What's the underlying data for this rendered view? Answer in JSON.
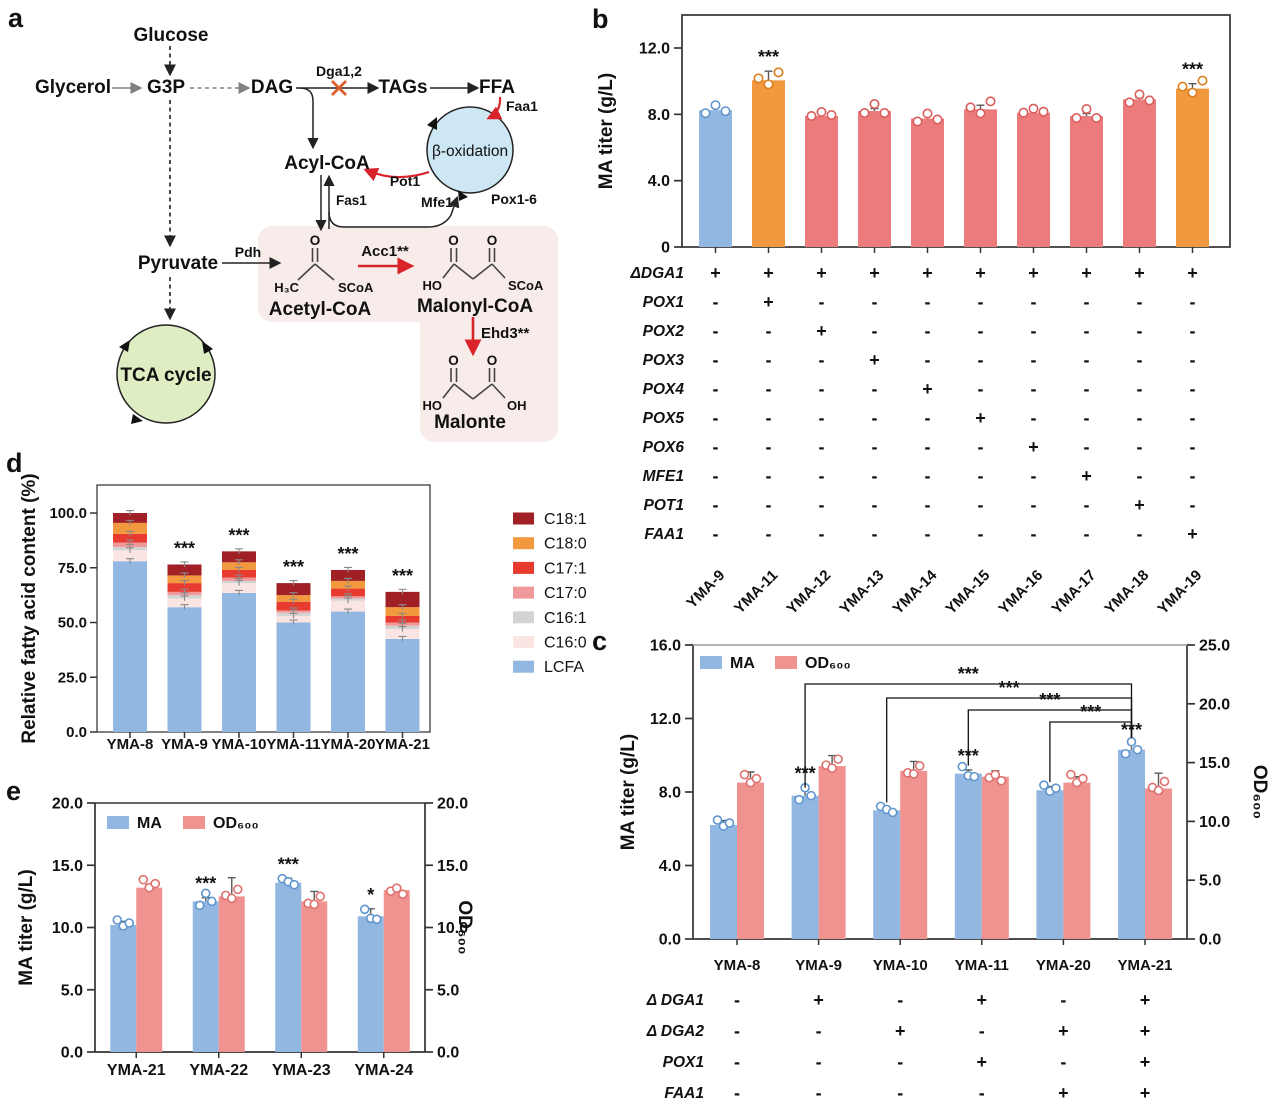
{
  "figure": {
    "panel_labels": {
      "a": "a",
      "b": "b",
      "c": "c",
      "d": "d",
      "e": "e"
    }
  },
  "colors": {
    "blue": "#92B7E1",
    "blue_stroke": "#5F95CE",
    "orange": "#F2983E",
    "orange_stroke": "#DD7E1E",
    "red": "#EC7C7C",
    "red_stroke": "#DB5C5C",
    "pink": "#F09290",
    "pink_stroke": "#DE706E",
    "dark_red": "#A12026",
    "bright_red": "#E73B2F",
    "salmon": "#F0999B",
    "light_gray": "#D3D3D3",
    "pale_pink": "#FBE5E3",
    "enzyme_red": "#D8232A",
    "dga_blue": "#2B6CB8",
    "cross_orange": "#DD5F2B",
    "beta_ox_fill": "#CDE7F4",
    "tca_fill": "#DFEDC2",
    "pathway_box": "#F7ECEA",
    "axis": "#333333",
    "error_bar": "#5A5A5A"
  },
  "panel_a": {
    "glucose": "Glucose",
    "glycerol": "Glycerol",
    "g3p": "G3P",
    "dag": "DAG",
    "dga12": "Dga1,2",
    "tags": "TAGs",
    "ffa": "FFA",
    "faa1": "Faa1",
    "beta_oxidation": "β-oxidation",
    "pot1": "Pot1",
    "mfe1": "Mfe1",
    "pox16": "Pox1-6",
    "acyl_coa": "Acyl-CoA",
    "fas1": "Fas1",
    "pyruvate": "Pyruvate",
    "pdh": "Pdh",
    "acc1": "Acc1**",
    "acetyl_coa": "Acetyl-CoA",
    "malonyl_coa": "Malonyl-CoA",
    "ehd3": "Ehd3**",
    "malonate": "Malonte",
    "tca": "TCA cycle",
    "atoms": {
      "o": "O",
      "ho": "HO",
      "oh": "OH",
      "scoa": "SCoA",
      "h3c": "H₃C"
    }
  },
  "chart_data": [
    {
      "id": "b",
      "type": "bar",
      "ylabel": "MA titer (g/L)",
      "categories": [
        "YMA-9",
        "YMA-11",
        "YMA-12",
        "YMA-13",
        "YMA-14",
        "YMA-15",
        "YMA-16",
        "YMA-17",
        "YMA-18",
        "YMA-19"
      ],
      "values": [
        8.25,
        10.05,
        7.9,
        8.2,
        7.75,
        8.3,
        8.1,
        7.9,
        8.9,
        9.55
      ],
      "errors": [
        0.15,
        0.55,
        0.2,
        0.15,
        0.2,
        0.25,
        0.2,
        0.15,
        0.1,
        0.3
      ],
      "bar_colors": [
        "blue",
        "orange",
        "red",
        "red",
        "red",
        "red",
        "red",
        "red",
        "red",
        "orange"
      ],
      "sig": [
        "",
        "***",
        "",
        "",
        "",
        "",
        "",
        "",
        "",
        "***"
      ],
      "yticks": [
        0,
        4,
        8,
        12
      ],
      "ytick_labels": [
        "0",
        "4.0",
        "8.0",
        "12.0"
      ],
      "ylim": [
        0,
        14.0
      ],
      "grid": false,
      "legend_position": "none"
    },
    {
      "id": "c",
      "type": "grouped_bar",
      "ylabel_left": "MA titer (g/L)",
      "ylabel_right": "OD₆₀₀",
      "categories": [
        "YMA-8",
        "YMA-9",
        "YMA-10",
        "YMA-11",
        "YMA-20",
        "YMA-21"
      ],
      "series": [
        {
          "name": "MA",
          "axis": "left",
          "color": "blue",
          "values": [
            6.2,
            7.8,
            7.0,
            9.0,
            8.1,
            10.3
          ],
          "errors": [
            0.25,
            0.45,
            0.15,
            0.2,
            0.2,
            0.3
          ],
          "sig": [
            "",
            "***",
            "",
            "***",
            "",
            "***"
          ]
        },
        {
          "name": "OD₆₀₀",
          "axis": "right",
          "color": "pink",
          "values": [
            13.3,
            14.7,
            14.3,
            13.8,
            13.3,
            12.8
          ],
          "errors": [
            0.9,
            0.9,
            0.8,
            0.5,
            0.5,
            1.3
          ],
          "sig": [
            "",
            "",
            "",
            "",
            "",
            ""
          ]
        }
      ],
      "left_axis": {
        "ticks": [
          0,
          4,
          8,
          12,
          16
        ],
        "labels": [
          "0.0",
          "4.0",
          "8.0",
          "12.0",
          "16.0"
        ],
        "max": 16
      },
      "right_axis": {
        "ticks": [
          0,
          5,
          10,
          15,
          20,
          25
        ],
        "labels": [
          "0.0",
          "5.0",
          "10.0",
          "15.0",
          "20.0",
          "25.0"
        ],
        "max": 25
      },
      "brackets": [
        {
          "from": "YMA-9",
          "to": "YMA-21",
          "label": "***"
        },
        {
          "from": "YMA-10",
          "to": "YMA-21",
          "label": "***"
        },
        {
          "from": "YMA-11",
          "to": "YMA-21",
          "label": "***"
        },
        {
          "from": "YMA-20",
          "to": "YMA-21",
          "label": "***"
        }
      ],
      "legend_position": "top-left",
      "grid": false
    },
    {
      "id": "d",
      "type": "stacked_bar",
      "ylabel": "Relative fatty acid content (%)",
      "categories": [
        "YMA-8",
        "YMA-9",
        "YMA-10",
        "YMA-11",
        "YMA-20",
        "YMA-21"
      ],
      "stack_order_bottom_to_top": [
        "LCFA",
        "C16:0",
        "C16:1",
        "C17:0",
        "C17:1",
        "C18:0",
        "C18:1"
      ],
      "series": [
        {
          "name": "C18:1",
          "color": "dark_red",
          "values": [
            4.5,
            5,
            5,
            5.5,
            5,
            7
          ]
        },
        {
          "name": "C18:0",
          "color": "orange",
          "values": [
            5,
            3.5,
            3.5,
            3,
            3.5,
            4
          ]
        },
        {
          "name": "C17:1",
          "color": "bright_red",
          "values": [
            4,
            4,
            3.5,
            4,
            3.5,
            3
          ]
        },
        {
          "name": "C17:0",
          "color": "salmon",
          "values": [
            2,
            1.5,
            1.5,
            1,
            1,
            1.5
          ]
        },
        {
          "name": "C16:1",
          "color": "light_gray",
          "values": [
            1.5,
            1.5,
            1,
            1.5,
            1,
            1.5
          ]
        },
        {
          "name": "C16:0",
          "color": "pale_pink",
          "values": [
            5,
            4,
            4.5,
            3,
            5,
            4.5
          ]
        },
        {
          "name": "LCFA",
          "color": "blue",
          "values": [
            78,
            57,
            63.5,
            50,
            55,
            42.5
          ]
        }
      ],
      "totals": [
        100,
        76.5,
        82.5,
        68,
        74,
        64
      ],
      "sig": [
        "",
        "***",
        "***",
        "***",
        "***",
        "***"
      ],
      "yticks": [
        0,
        25,
        50,
        75,
        100
      ],
      "ytick_labels": [
        "0.0",
        "25.0",
        "50.0",
        "75.0",
        "100.0"
      ],
      "ylim": [
        0,
        112.8
      ],
      "legend_position": "right",
      "grid": false
    },
    {
      "id": "e",
      "type": "grouped_bar",
      "ylabel_left": "MA titer (g/L)",
      "ylabel_right": "OD₆₀₀",
      "categories": [
        "YMA-21",
        "YMA-22",
        "YMA-23",
        "YMA-24"
      ],
      "series": [
        {
          "name": "MA",
          "axis": "left",
          "color": "blue",
          "values": [
            10.2,
            12.1,
            13.6,
            10.9
          ],
          "errors": [
            0.3,
            0.3,
            0.35,
            0.6
          ],
          "sig": [
            "",
            "***",
            "***",
            "*"
          ]
        },
        {
          "name": "OD₆₀₀",
          "axis": "right",
          "color": "pink",
          "values": [
            13.2,
            12.5,
            12.1,
            13.0
          ],
          "errors": [
            0.25,
            1.5,
            0.8,
            0.35
          ],
          "sig": [
            "",
            "",
            "",
            ""
          ]
        }
      ],
      "left_axis": {
        "ticks": [
          0,
          5,
          10,
          15,
          20
        ],
        "labels": [
          "0.0",
          "5.0",
          "10.0",
          "15.0",
          "20.0"
        ],
        "max": 20
      },
      "right_axis": {
        "ticks": [
          0,
          5,
          10,
          15,
          20
        ],
        "labels": [
          "0.0",
          "5.0",
          "10.0",
          "15.0",
          "20.0"
        ],
        "max": 20
      },
      "brackets": [],
      "legend_position": "top-left",
      "grid": false
    }
  ],
  "tables": {
    "b": {
      "rows": [
        {
          "gene": "ΔDGA1",
          "values": [
            "+",
            "+",
            "+",
            "+",
            "+",
            "+",
            "+",
            "+",
            "+",
            "+"
          ]
        },
        {
          "gene": "POX1",
          "values": [
            "-",
            "+",
            "-",
            "-",
            "-",
            "-",
            "-",
            "-",
            "-",
            "-"
          ]
        },
        {
          "gene": "POX2",
          "values": [
            "-",
            "-",
            "+",
            "-",
            "-",
            "-",
            "-",
            "-",
            "-",
            "-"
          ]
        },
        {
          "gene": "POX3",
          "values": [
            "-",
            "-",
            "-",
            "+",
            "-",
            "-",
            "-",
            "-",
            "-",
            "-"
          ]
        },
        {
          "gene": "POX4",
          "values": [
            "-",
            "-",
            "-",
            "-",
            "+",
            "-",
            "-",
            "-",
            "-",
            "-"
          ]
        },
        {
          "gene": "POX5",
          "values": [
            "-",
            "-",
            "-",
            "-",
            "-",
            "+",
            "-",
            "-",
            "-",
            "-"
          ]
        },
        {
          "gene": "POX6",
          "values": [
            "-",
            "-",
            "-",
            "-",
            "-",
            "-",
            "+",
            "-",
            "-",
            "-"
          ]
        },
        {
          "gene": "MFE1",
          "values": [
            "-",
            "-",
            "-",
            "-",
            "-",
            "-",
            "-",
            "+",
            "-",
            "-"
          ]
        },
        {
          "gene": "POT1",
          "values": [
            "-",
            "-",
            "-",
            "-",
            "-",
            "-",
            "-",
            "-",
            "+",
            "-"
          ]
        },
        {
          "gene": "FAA1",
          "values": [
            "-",
            "-",
            "-",
            "-",
            "-",
            "-",
            "-",
            "-",
            "-",
            "+"
          ]
        }
      ]
    },
    "c": {
      "rows": [
        {
          "gene": "Δ DGA1",
          "values": [
            "-",
            "+",
            "-",
            "+",
            "-",
            "+"
          ]
        },
        {
          "gene": "Δ DGA2",
          "values": [
            "-",
            "-",
            "+",
            "-",
            "+",
            "+"
          ]
        },
        {
          "gene": "POX1",
          "values": [
            "-",
            "-",
            "-",
            "+",
            "-",
            "+"
          ]
        },
        {
          "gene": "FAA1",
          "values": [
            "-",
            "-",
            "-",
            "-",
            "+",
            "+"
          ]
        }
      ]
    }
  }
}
